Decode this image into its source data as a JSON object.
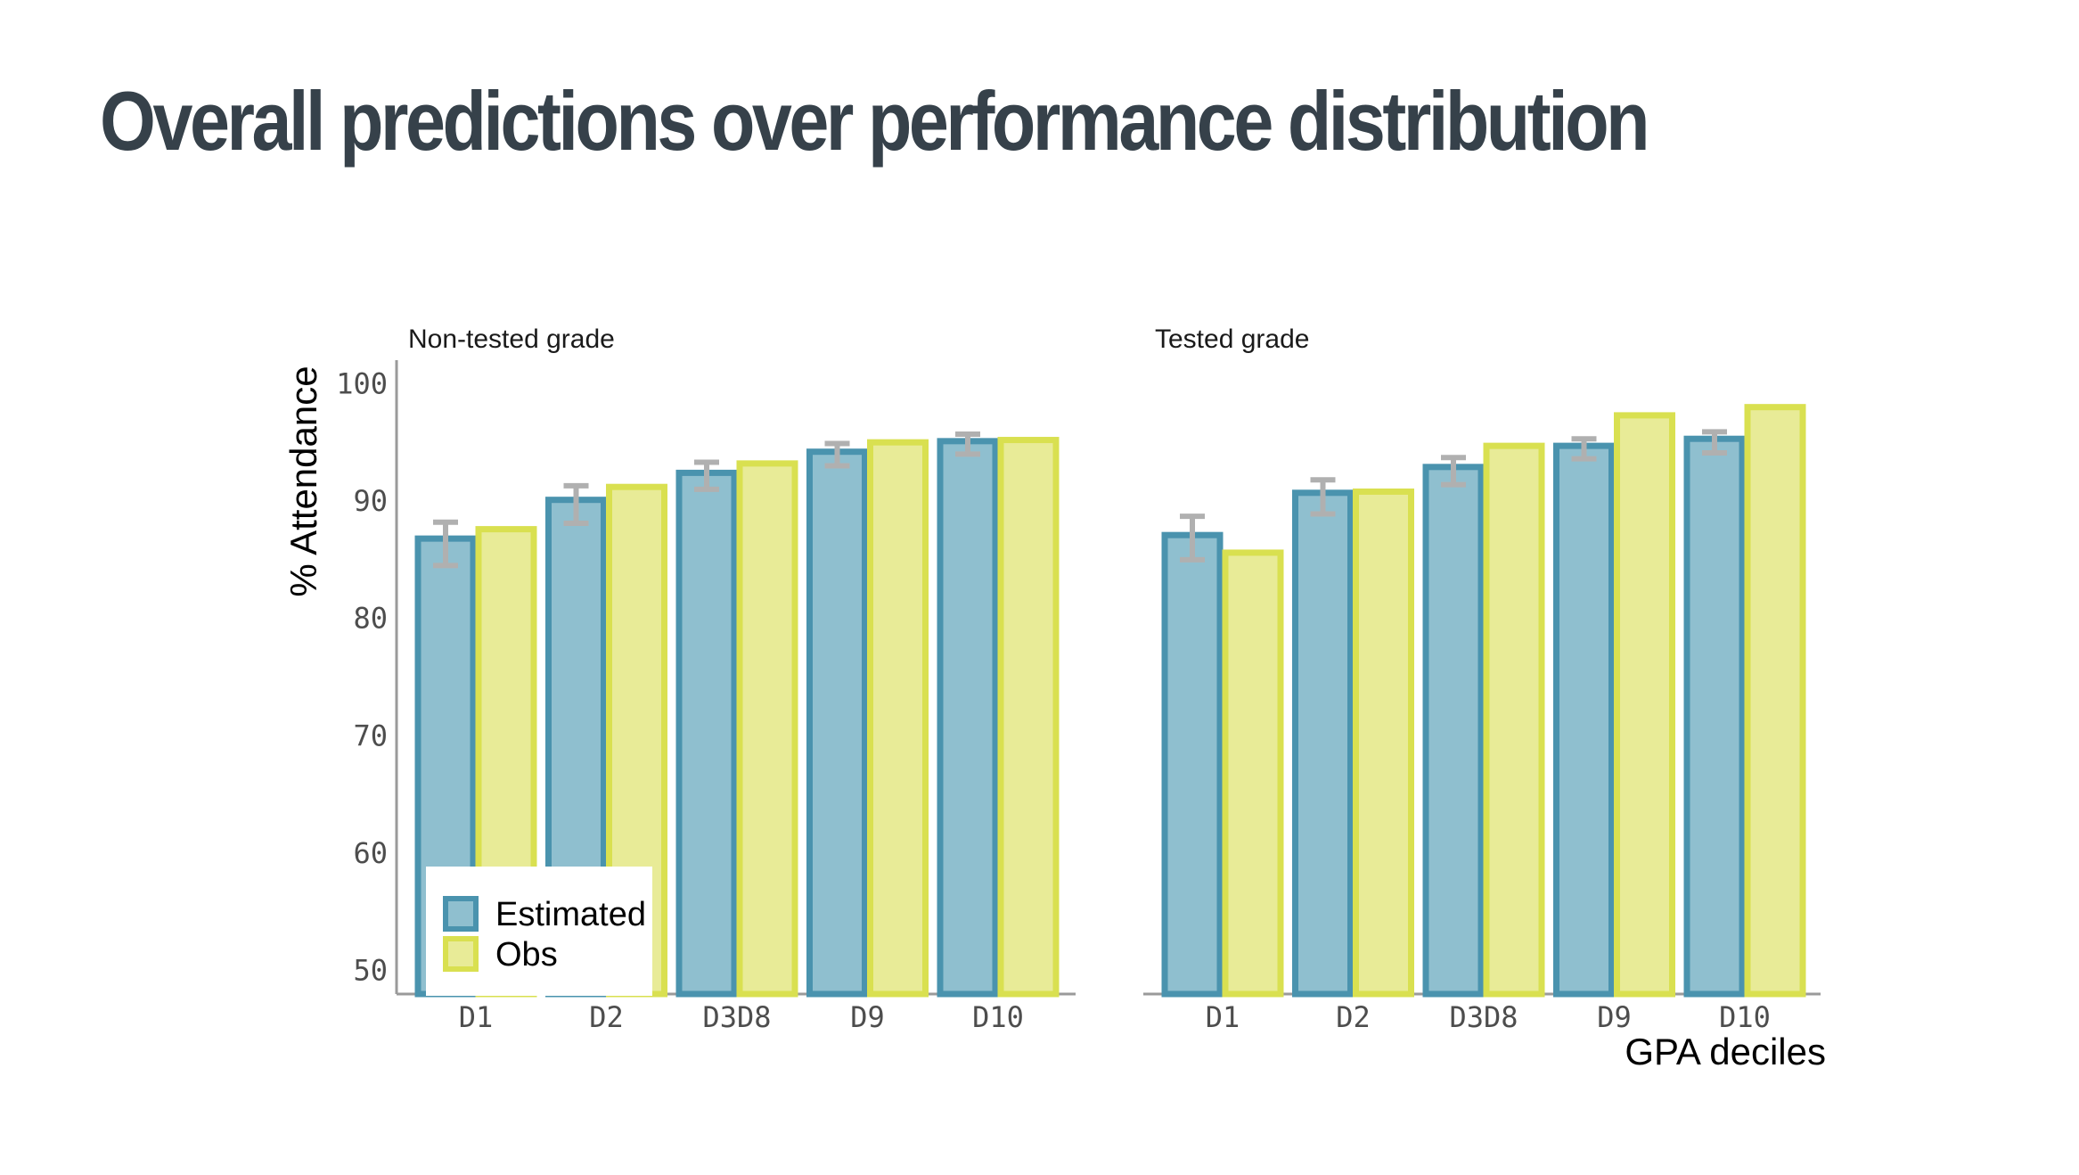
{
  "title": "Overall predictions over performance distribution",
  "chart_data": {
    "type": "bar",
    "ylabel": "% Attendance",
    "xlabel": "GPA deciles",
    "ylim": [
      48,
      102
    ],
    "yticks": [
      50,
      60,
      70,
      80,
      90,
      100
    ],
    "categories": [
      "D1",
      "D2",
      "D3D8",
      "D9",
      "D10"
    ],
    "colors": {
      "Estimated": {
        "fill": "#8fbfcf",
        "stroke": "#4a93ae"
      },
      "Obs": {
        "fill": "#e8eb97",
        "stroke": "#d9e050"
      },
      "error_bar": "#b0b0b0",
      "axis": "#9a9a9a"
    },
    "legend": {
      "position": "bottom-left",
      "entries": [
        "Estimated",
        "Obs"
      ]
    },
    "panels": [
      {
        "title": "Non-tested grade",
        "series": [
          {
            "name": "Estimated",
            "values": [
              86.8,
              90.1,
              92.4,
              94.2,
              95.1
            ],
            "error_low": [
              84.5,
              88.1,
              91.0,
              93.0,
              94.0
            ],
            "error_high": [
              88.2,
              91.3,
              93.3,
              94.9,
              95.7
            ]
          },
          {
            "name": "Obs",
            "values": [
              87.6,
              91.2,
              93.2,
              95.0,
              95.2
            ]
          }
        ]
      },
      {
        "title": "Tested grade",
        "series": [
          {
            "name": "Estimated",
            "values": [
              87.1,
              90.7,
              92.9,
              94.7,
              95.3
            ],
            "error_low": [
              85.0,
              88.9,
              91.4,
              93.6,
              94.1
            ],
            "error_high": [
              88.7,
              91.8,
              93.7,
              95.3,
              95.9
            ]
          },
          {
            "name": "Obs",
            "values": [
              85.6,
              90.8,
              94.7,
              97.3,
              98.0
            ]
          }
        ]
      }
    ]
  }
}
